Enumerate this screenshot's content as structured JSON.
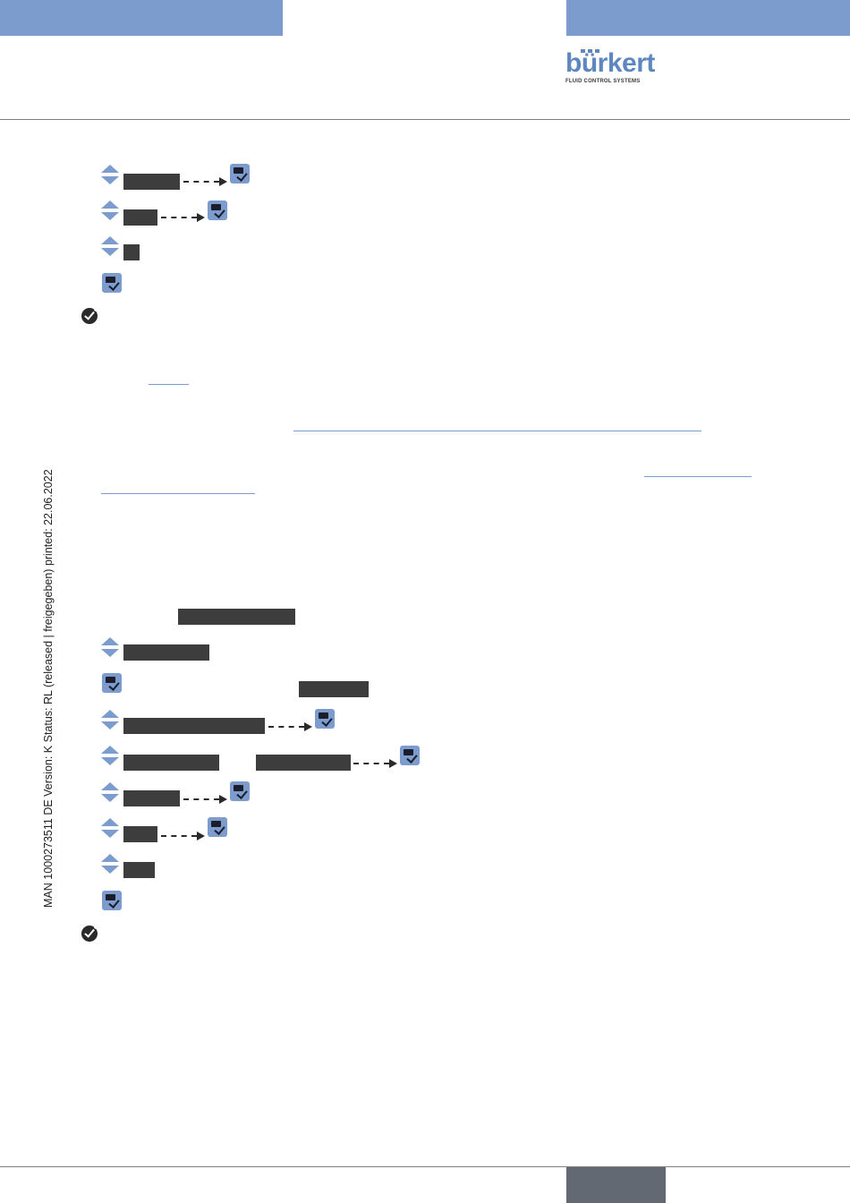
{
  "header": {
    "brand": "bürkert",
    "brand_tagline": "FLUID CONTROL SYSTEMS",
    "accent_color": "#7b9ccd",
    "page_box_color": "#636972"
  },
  "side_margin": {
    "text": "MAN  1000273511  DE  Version: K Status: RL (released | freigegeben)  printed: 22.06.2022"
  },
  "icons": {
    "navigate": "up-down-arrows-icon",
    "confirm": "enter-confirm-icon",
    "result": "check-circle-icon"
  }
}
